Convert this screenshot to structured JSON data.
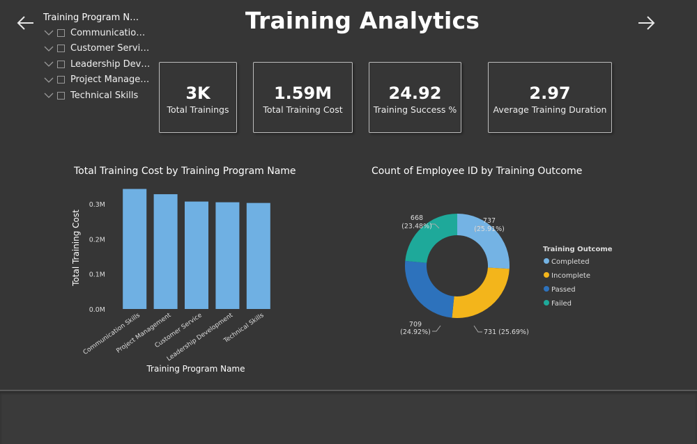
{
  "header": {
    "title": "Training Analytics"
  },
  "slicer": {
    "title": "Training Program Na...",
    "items": [
      {
        "label": "Communication S..."
      },
      {
        "label": "Customer Service"
      },
      {
        "label": "Leadership Devel..."
      },
      {
        "label": "Project Managem..."
      },
      {
        "label": "Technical Skills"
      }
    ]
  },
  "kpis": [
    {
      "value": "3K",
      "caption": "Total Trainings"
    },
    {
      "value": "1.59M",
      "caption": "Total Training Cost"
    },
    {
      "value": "24.92",
      "caption": "Training Success %"
    },
    {
      "value": "2.97",
      "caption": "Average Training Duration"
    }
  ],
  "icons": {
    "back": "arrow-left-icon",
    "forward": "arrow-right-icon"
  },
  "colors": {
    "bar": "#6fb0e3",
    "completed": "#74b3e4",
    "incomplete": "#f3b51b",
    "passed": "#2d72bc",
    "failed": "#1ea99a"
  },
  "chart_data": [
    {
      "type": "bar",
      "title": "Total Training Cost by Training Program Name",
      "xlabel": "Training Program Name",
      "ylabel": "Total Training Cost",
      "categories": [
        "Communication Skills",
        "Project Management",
        "Customer Service",
        "Leadership Development",
        "Technical Skills"
      ],
      "values": [
        0.343,
        0.328,
        0.307,
        0.305,
        0.303
      ],
      "yticks": [
        "0.0M",
        "0.1M",
        "0.2M",
        "0.3M"
      ],
      "ylim": [
        0,
        0.35
      ],
      "grid": false
    },
    {
      "type": "pie",
      "title": "Count of Employee ID by Training Outcome",
      "legend_title": "Training Outcome",
      "legend_position": "right",
      "slices": [
        {
          "name": "Completed",
          "value": 737,
          "pct": "25.91%",
          "label": "737\n(25.91%)"
        },
        {
          "name": "Incomplete",
          "value": 731,
          "pct": "25.69%",
          "label": "731 (25.69%)"
        },
        {
          "name": "Passed",
          "value": 709,
          "pct": "24.92%",
          "label": "709\n(24.92%)"
        },
        {
          "name": "Failed",
          "value": 668,
          "pct": "23.48%",
          "label": "668\n(23.48%)"
        }
      ]
    }
  ]
}
